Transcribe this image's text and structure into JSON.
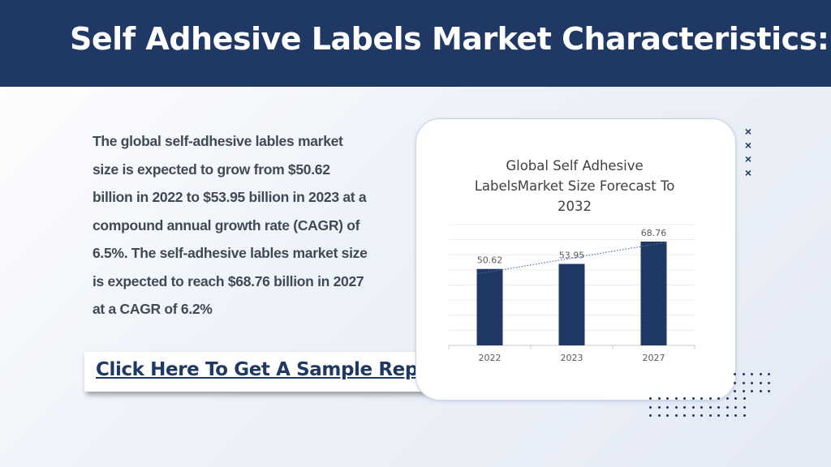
{
  "header": {
    "title": "Self Adhesive Labels Market Characteristics:"
  },
  "body_text": "The global self-adhesive lables market size is expected to grow from $50.62 billion in 2022 to $53.95 billion in 2023 at a compound annual growth rate (CAGR) of 6.5%. The self-adhesive lables market size is expected to reach $68.76 billion in 2027 at a CAGR of 6.2%",
  "cta": {
    "label": "Click Here To Get A Sample Report"
  },
  "decor": {
    "x_mark": "×"
  },
  "colors": {
    "header_bg": "#1f3864",
    "bar": "#1f3864",
    "trendline": "#4a6fa5"
  },
  "chart_data": {
    "type": "bar",
    "title": "Global Self Adhesive LabelsMarket Size Forecast To 2032",
    "categories": [
      "2022",
      "2023",
      "2027"
    ],
    "values": [
      50.62,
      53.95,
      68.76
    ],
    "data_labels": [
      "50.62",
      "53.95",
      "68.76"
    ],
    "ylim": [
      0,
      80
    ],
    "grid": true,
    "trendline": "linear dotted",
    "xlabel": "",
    "ylabel": ""
  }
}
